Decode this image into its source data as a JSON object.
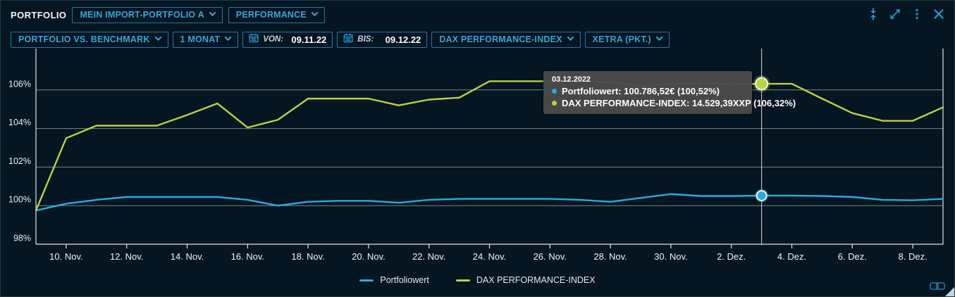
{
  "header": {
    "title": "PORTFOLIO",
    "portfolio_select": "MEIN IMPORT-PORTFOLIO A",
    "view_select": "PERFORMANCE",
    "icons": [
      "collapse-vertical-icon",
      "expand-icon",
      "kebab-menu-icon",
      "close-icon"
    ]
  },
  "toolbar": {
    "mode_select": "PORTFOLIO VS. BENCHMARK",
    "range_select": "1 MONAT",
    "from_label": "VON:",
    "from_value": "09.11.22",
    "to_label": "BIS:",
    "to_value": "09.12.22",
    "benchmark_select": "DAX PERFORMANCE-INDEX",
    "exchange_select": "XETRA (PKT.)",
    "calendar_icon": "calendar-icon"
  },
  "tooltip": {
    "date": "03.12.2022",
    "rows": [
      {
        "text": "Portfoliowert: 100.786,52€ (100,52%)",
        "color": "#29abdf"
      },
      {
        "text": "DAX PERFORMANCE-INDEX: 14.529,39XXP (106,32%)",
        "color": "#bcd23f"
      }
    ]
  },
  "chart_data": {
    "type": "line",
    "title": "",
    "xlabel": "",
    "ylabel": "",
    "ylim": [
      98,
      108.1
    ],
    "grid": "horizontal",
    "legend_position": "bottom",
    "x": [
      "09.11.2022",
      "10.11.2022",
      "11.11.2022",
      "12.11.2022",
      "13.11.2022",
      "14.11.2022",
      "15.11.2022",
      "16.11.2022",
      "17.11.2022",
      "18.11.2022",
      "19.11.2022",
      "20.11.2022",
      "21.11.2022",
      "22.11.2022",
      "23.11.2022",
      "24.11.2022",
      "25.11.2022",
      "26.11.2022",
      "27.11.2022",
      "28.11.2022",
      "29.11.2022",
      "30.11.2022",
      "01.12.2022",
      "02.12.2022",
      "03.12.2022",
      "04.12.2022",
      "05.12.2022",
      "06.12.2022",
      "07.12.2022",
      "08.12.2022",
      "09.12.2022"
    ],
    "series": [
      {
        "name": "Portfoliowert",
        "unit": "percent",
        "color": "#29abdf",
        "values": [
          99.75,
          100.1,
          100.3,
          100.45,
          100.45,
          100.45,
          100.45,
          100.3,
          100.0,
          100.2,
          100.25,
          100.25,
          100.15,
          100.3,
          100.35,
          100.35,
          100.35,
          100.35,
          100.3,
          100.2,
          100.4,
          100.6,
          100.5,
          100.5,
          100.52,
          100.52,
          100.5,
          100.45,
          100.3,
          100.28,
          100.35
        ]
      },
      {
        "name": "DAX PERFORMANCE-INDEX",
        "unit": "percent",
        "color": "#bcd23f",
        "values": [
          99.75,
          103.5,
          104.15,
          104.15,
          104.15,
          104.7,
          105.3,
          104.05,
          104.45,
          105.55,
          105.55,
          105.55,
          105.2,
          105.5,
          105.6,
          106.45,
          106.45,
          106.45,
          106.45,
          106.4,
          106.2,
          106.3,
          106.35,
          106.3,
          106.32,
          106.32,
          105.55,
          104.8,
          104.4,
          104.4,
          105.1
        ]
      }
    ],
    "yticks": [
      98,
      100,
      102,
      104,
      106
    ],
    "ytick_labels": [
      "98%",
      "100%",
      "102%",
      "104%",
      "106%"
    ],
    "xtick_indices": [
      1,
      3,
      5,
      7,
      9,
      11,
      13,
      15,
      17,
      19,
      21,
      23,
      25,
      27,
      29
    ],
    "xtick_labels": [
      "10. Nov.",
      "12. Nov.",
      "14. Nov.",
      "16. Nov.",
      "18. Nov.",
      "20. Nov.",
      "22. Nov.",
      "24. Nov.",
      "26. Nov.",
      "28. Nov.",
      "30. Nov.",
      "2. Dez.",
      "4. Dez.",
      "6. Dez.",
      "8. Dez."
    ],
    "crosshair_index": 24,
    "highlight": {
      "date": "03.12.2022",
      "portfoliowert_value": "100.786,52€",
      "portfoliowert_percent": "100,52%",
      "dax_value": "14.529,39XXP",
      "dax_percent": "106,32%"
    }
  },
  "footer": {
    "link_icon": "link-icon"
  },
  "colors": {
    "background": "#051521",
    "accent_blue": "#38a5d8",
    "button_border": "#1f7dab",
    "series_portfolio": "#29abdf",
    "series_dax": "#bcd23f",
    "tooltip_bg": "#4a4a4a",
    "axis": "#dde7ec",
    "grid": "#d8e2e8"
  }
}
